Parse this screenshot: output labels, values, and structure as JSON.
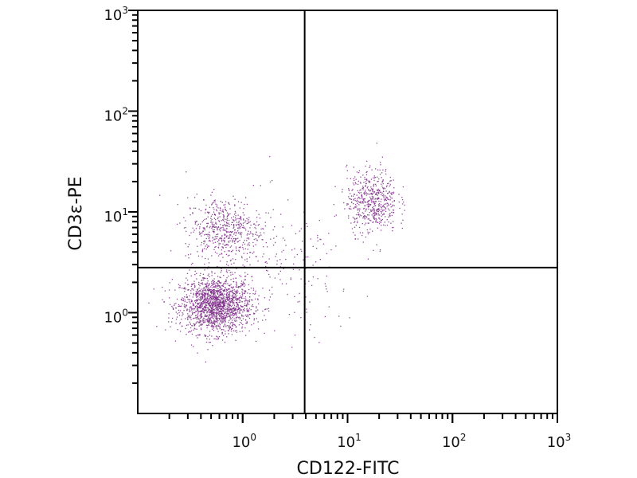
{
  "chart_data": {
    "type": "scatter",
    "xlabel": "CD122-FITC",
    "ylabel": "CD3ε-PE",
    "x_scale": "log",
    "y_scale": "log",
    "xlim": [
      0.1,
      1000
    ],
    "ylim": [
      0.1,
      1000
    ],
    "x_ticks": [
      {
        "base": "10",
        "exp": "0",
        "value": 1
      },
      {
        "base": "10",
        "exp": "1",
        "value": 10
      },
      {
        "base": "10",
        "exp": "2",
        "value": 100
      },
      {
        "base": "10",
        "exp": "3",
        "value": 1000
      }
    ],
    "y_ticks": [
      {
        "base": "10",
        "exp": "0",
        "value": 1
      },
      {
        "base": "10",
        "exp": "1",
        "value": 10
      },
      {
        "base": "10",
        "exp": "2",
        "value": 100
      },
      {
        "base": "10",
        "exp": "3",
        "value": 1000
      }
    ],
    "quadrant_gates": {
      "x": 3.9,
      "y": 2.8
    },
    "grid": false,
    "point_color": "#7b2a86",
    "populations": [
      {
        "center": [
          0.55,
          1.2
        ],
        "log_sd": [
          0.17,
          0.14
        ],
        "count": 1700
      },
      {
        "center": [
          0.65,
          6.8
        ],
        "log_sd": [
          0.18,
          0.16
        ],
        "count": 550
      },
      {
        "center": [
          17,
          13
        ],
        "log_sd": [
          0.12,
          0.16
        ],
        "count": 550
      },
      {
        "center": [
          2.5,
          2.5
        ],
        "log_sd": [
          0.35,
          0.35
        ],
        "count": 180
      }
    ]
  }
}
